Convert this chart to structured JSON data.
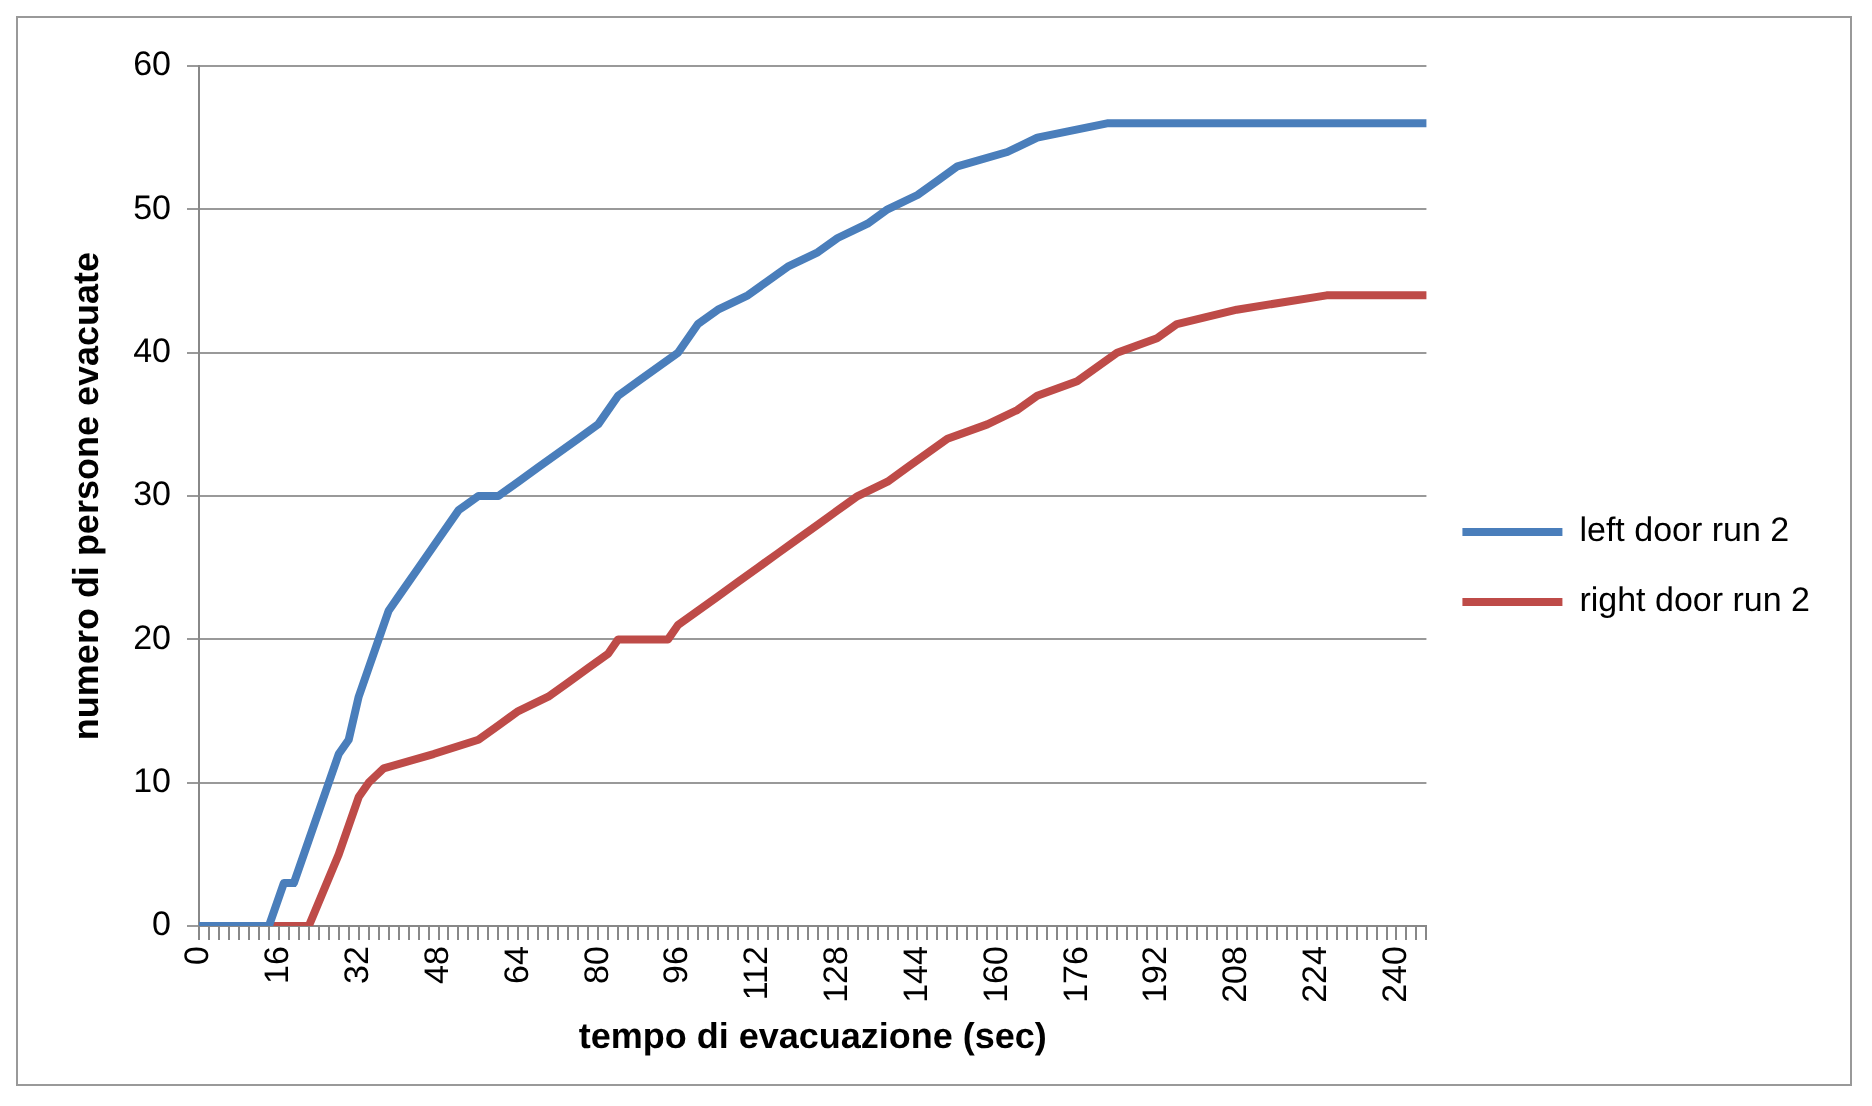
{
  "chart_data": {
    "type": "line",
    "xlabel": "tempo di evacuazione (sec)",
    "ylabel": "numero di persone evacuate",
    "xlim": [
      0,
      246
    ],
    "ylim": [
      0,
      60
    ],
    "yticks": [
      0,
      10,
      20,
      30,
      40,
      50,
      60
    ],
    "xticks": [
      0,
      {
        "value": 2,
        "label": null
      },
      {
        "value": 4,
        "label": null
      },
      {
        "value": 6,
        "label": null
      },
      {
        "value": 8,
        "label": null
      },
      {
        "value": 10,
        "label": null
      },
      {
        "value": 12,
        "label": null
      },
      {
        "value": 14,
        "label": null
      },
      16,
      {
        "value": 18,
        "label": null
      },
      {
        "value": 20,
        "label": null
      },
      {
        "value": 22,
        "label": null
      },
      {
        "value": 24,
        "label": null
      },
      {
        "value": 26,
        "label": null
      },
      {
        "value": 28,
        "label": null
      },
      {
        "value": 30,
        "label": null
      },
      32,
      {
        "value": 34,
        "label": null
      },
      {
        "value": 36,
        "label": null
      },
      {
        "value": 38,
        "label": null
      },
      {
        "value": 40,
        "label": null
      },
      {
        "value": 42,
        "label": null
      },
      {
        "value": 44,
        "label": null
      },
      {
        "value": 46,
        "label": null
      },
      48,
      {
        "value": 50,
        "label": null
      },
      {
        "value": 52,
        "label": null
      },
      {
        "value": 54,
        "label": null
      },
      {
        "value": 56,
        "label": null
      },
      {
        "value": 58,
        "label": null
      },
      {
        "value": 60,
        "label": null
      },
      {
        "value": 62,
        "label": null
      },
      64,
      {
        "value": 66,
        "label": null
      },
      {
        "value": 68,
        "label": null
      },
      {
        "value": 70,
        "label": null
      },
      {
        "value": 72,
        "label": null
      },
      {
        "value": 74,
        "label": null
      },
      {
        "value": 76,
        "label": null
      },
      {
        "value": 78,
        "label": null
      },
      80,
      {
        "value": 82,
        "label": null
      },
      {
        "value": 84,
        "label": null
      },
      {
        "value": 86,
        "label": null
      },
      {
        "value": 88,
        "label": null
      },
      {
        "value": 90,
        "label": null
      },
      {
        "value": 92,
        "label": null
      },
      {
        "value": 94,
        "label": null
      },
      96,
      {
        "value": 98,
        "label": null
      },
      {
        "value": 100,
        "label": null
      },
      {
        "value": 102,
        "label": null
      },
      {
        "value": 104,
        "label": null
      },
      {
        "value": 106,
        "label": null
      },
      {
        "value": 108,
        "label": null
      },
      {
        "value": 110,
        "label": null
      },
      112,
      {
        "value": 114,
        "label": null
      },
      {
        "value": 116,
        "label": null
      },
      {
        "value": 118,
        "label": null
      },
      {
        "value": 120,
        "label": null
      },
      {
        "value": 122,
        "label": null
      },
      {
        "value": 124,
        "label": null
      },
      {
        "value": 126,
        "label": null
      },
      128,
      {
        "value": 130,
        "label": null
      },
      {
        "value": 132,
        "label": null
      },
      {
        "value": 134,
        "label": null
      },
      {
        "value": 136,
        "label": null
      },
      {
        "value": 138,
        "label": null
      },
      {
        "value": 140,
        "label": null
      },
      {
        "value": 142,
        "label": null
      },
      144,
      {
        "value": 146,
        "label": null
      },
      {
        "value": 148,
        "label": null
      },
      {
        "value": 150,
        "label": null
      },
      {
        "value": 152,
        "label": null
      },
      {
        "value": 154,
        "label": null
      },
      {
        "value": 156,
        "label": null
      },
      {
        "value": 158,
        "label": null
      },
      160,
      {
        "value": 162,
        "label": null
      },
      {
        "value": 164,
        "label": null
      },
      {
        "value": 166,
        "label": null
      },
      {
        "value": 168,
        "label": null
      },
      {
        "value": 170,
        "label": null
      },
      {
        "value": 172,
        "label": null
      },
      {
        "value": 174,
        "label": null
      },
      176,
      {
        "value": 178,
        "label": null
      },
      {
        "value": 180,
        "label": null
      },
      {
        "value": 182,
        "label": null
      },
      {
        "value": 184,
        "label": null
      },
      {
        "value": 186,
        "label": null
      },
      {
        "value": 188,
        "label": null
      },
      {
        "value": 190,
        "label": null
      },
      192,
      {
        "value": 194,
        "label": null
      },
      {
        "value": 196,
        "label": null
      },
      {
        "value": 198,
        "label": null
      },
      {
        "value": 200,
        "label": null
      },
      {
        "value": 202,
        "label": null
      },
      {
        "value": 204,
        "label": null
      },
      {
        "value": 206,
        "label": null
      },
      208,
      {
        "value": 210,
        "label": null
      },
      {
        "value": 212,
        "label": null
      },
      {
        "value": 214,
        "label": null
      },
      {
        "value": 216,
        "label": null
      },
      {
        "value": 218,
        "label": null
      },
      {
        "value": 220,
        "label": null
      },
      {
        "value": 222,
        "label": null
      },
      224,
      {
        "value": 226,
        "label": null
      },
      {
        "value": 228,
        "label": null
      },
      {
        "value": 230,
        "label": null
      },
      {
        "value": 232,
        "label": null
      },
      {
        "value": 234,
        "label": null
      },
      {
        "value": 236,
        "label": null
      },
      {
        "value": 238,
        "label": null
      },
      240,
      {
        "value": 242,
        "label": null
      },
      {
        "value": 244,
        "label": null
      },
      {
        "value": 246,
        "label": null
      }
    ],
    "grid": "y",
    "legend": "right",
    "marker": "none",
    "line_style": "solid",
    "series": [
      {
        "name": "left door run 2",
        "color": "#4a7ebb",
        "x": [
          0,
          14,
          17,
          19,
          22,
          26,
          28,
          30,
          32,
          34,
          36,
          38,
          40,
          44,
          48,
          52,
          56,
          60,
          64,
          68,
          72,
          76,
          80,
          84,
          88,
          92,
          96,
          100,
          104,
          110,
          114,
          118,
          124,
          128,
          134,
          138,
          144,
          148,
          152,
          162,
          168,
          182,
          246
        ],
        "values": [
          0,
          0,
          3,
          3,
          6,
          10,
          12,
          13,
          16,
          18,
          20,
          22,
          23,
          25,
          27,
          29,
          30,
          30,
          31,
          32,
          33,
          34,
          35,
          37,
          38,
          39,
          40,
          42,
          43,
          44,
          45,
          46,
          47,
          48,
          49,
          50,
          51,
          52,
          53,
          54,
          55,
          56,
          56
        ]
      },
      {
        "name": "right door run 2",
        "color": "#be4b48",
        "x": [
          0,
          22,
          28,
          32,
          34,
          37,
          47,
          56,
          60,
          64,
          70,
          74,
          78,
          82,
          84,
          94,
          96,
          100,
          104,
          108,
          112,
          116,
          120,
          124,
          128,
          132,
          138,
          142,
          146,
          150,
          158,
          164,
          168,
          176,
          180,
          184,
          192,
          196,
          208,
          226,
          246
        ],
        "values": [
          0,
          0,
          5,
          9,
          10,
          11,
          12,
          13,
          14,
          15,
          16,
          17,
          18,
          19,
          20,
          20,
          21,
          22,
          23,
          24,
          25,
          26,
          27,
          28,
          29,
          30,
          31,
          32,
          33,
          34,
          35,
          36,
          37,
          38,
          39,
          40,
          41,
          42,
          43,
          44,
          44
        ]
      }
    ]
  }
}
